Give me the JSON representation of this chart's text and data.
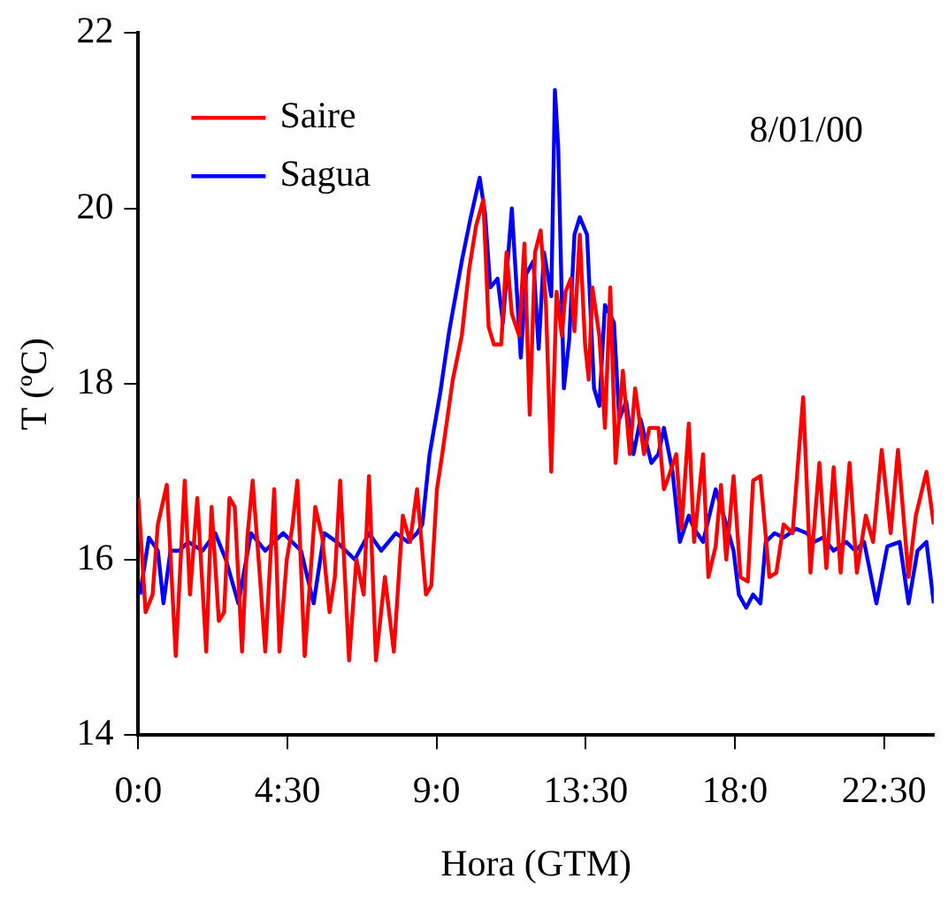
{
  "chart_data": {
    "type": "line",
    "xlabel": "Hora (GTM)",
    "ylabel": "T (ºC)",
    "annotations": [
      "8/01/00"
    ],
    "xlim": [
      0,
      24
    ],
    "xticks": [
      {
        "value": 0,
        "label": "0:0"
      },
      {
        "value": 4.5,
        "label": "4:30"
      },
      {
        "value": 9,
        "label": "9:0"
      },
      {
        "value": 13.5,
        "label": "13:30"
      },
      {
        "value": 18,
        "label": "18:0"
      },
      {
        "value": 22.5,
        "label": "22:30"
      }
    ],
    "ylim": [
      14,
      22
    ],
    "yticks": [
      14,
      16,
      18,
      20,
      22
    ],
    "grid": false,
    "legend": "top left",
    "marker": "none",
    "line_style": "solid",
    "series": [
      {
        "name": "Saire",
        "color": "#ff0000",
        "x": [
          0,
          0.22,
          0.43,
          0.59,
          0.86,
          1.13,
          1.4,
          1.56,
          1.78,
          2.05,
          2.21,
          2.43,
          2.59,
          2.75,
          2.91,
          3.13,
          3.29,
          3.45,
          3.67,
          3.83,
          4.1,
          4.26,
          4.48,
          4.64,
          4.8,
          5.02,
          5.34,
          5.55,
          5.77,
          5.93,
          6.09,
          6.36,
          6.58,
          6.8,
          6.96,
          7.17,
          7.44,
          7.71,
          7.98,
          8.2,
          8.41,
          8.68,
          8.84,
          9.01,
          9.17,
          9.49,
          9.76,
          9.98,
          10.19,
          10.41,
          10.57,
          10.73,
          10.95,
          11.11,
          11.27,
          11.49,
          11.65,
          11.81,
          11.97,
          12.14,
          12.3,
          12.46,
          12.62,
          12.78,
          12.89,
          13.05,
          13.16,
          13.32,
          13.48,
          13.59,
          13.7,
          13.91,
          14.08,
          14.24,
          14.4,
          14.62,
          14.83,
          14.99,
          15.26,
          15.42,
          15.69,
          15.86,
          15.96,
          16.23,
          16.39,
          16.61,
          16.77,
          17.04,
          17.2,
          17.42,
          17.58,
          17.74,
          17.96,
          18.17,
          18.39,
          18.55,
          18.77,
          19.04,
          19.25,
          19.47,
          19.74,
          20.06,
          20.28,
          20.55,
          20.76,
          20.98,
          21.19,
          21.46,
          21.68,
          21.95,
          22.17,
          22.43,
          22.7,
          22.92,
          23.24,
          23.46,
          23.78,
          24
        ],
        "values": [
          16.7,
          15.4,
          15.6,
          16.4,
          16.85,
          14.9,
          16.9,
          15.6,
          16.7,
          14.95,
          16.6,
          15.3,
          15.4,
          16.7,
          16.6,
          14.95,
          16.25,
          16.9,
          15.8,
          14.95,
          16.8,
          14.95,
          16,
          16.35,
          16.9,
          14.9,
          16.6,
          16.25,
          15.4,
          15.8,
          16.9,
          14.85,
          16,
          15.6,
          16.95,
          14.85,
          15.8,
          14.95,
          16.5,
          16.2,
          16.8,
          15.6,
          15.7,
          16.8,
          17.2,
          18.05,
          18.55,
          19.3,
          19.8,
          20.1,
          18.65,
          18.45,
          18.45,
          19.5,
          18.8,
          18.55,
          19.6,
          17.65,
          19.5,
          19.75,
          18.9,
          17,
          19.05,
          18.55,
          19.05,
          19.2,
          18.6,
          19.7,
          18.45,
          18.05,
          19.1,
          18.55,
          17.5,
          19.1,
          17.1,
          18.15,
          17.2,
          17.95,
          17.2,
          17.5,
          17.5,
          16.8,
          16.9,
          17.2,
          16.35,
          17.55,
          16.2,
          17.2,
          15.8,
          16.15,
          16.85,
          16,
          16.95,
          15.8,
          15.75,
          16.9,
          16.95,
          15.8,
          15.85,
          16.4,
          16.3,
          17.85,
          15.85,
          17.1,
          15.9,
          17.05,
          15.85,
          17.1,
          15.85,
          16.5,
          16.2,
          17.25,
          16.3,
          17.25,
          15.8,
          16.5,
          17,
          16.4
        ]
      },
      {
        "name": "Sagua",
        "color": "#0000ff",
        "x": [
          0.05,
          0.32,
          0.59,
          0.76,
          0.97,
          1.24,
          1.51,
          1.94,
          2.32,
          2.64,
          3.02,
          3.4,
          3.83,
          4.37,
          4.91,
          5.29,
          5.61,
          5.99,
          6.53,
          6.96,
          7.33,
          7.77,
          8.14,
          8.41,
          8.57,
          8.79,
          9.11,
          9.38,
          9.76,
          10.03,
          10.3,
          10.46,
          10.62,
          10.84,
          11,
          11.27,
          11.54,
          11.7,
          11.92,
          12.08,
          12.24,
          12.46,
          12.57,
          12.67,
          12.84,
          13,
          13.16,
          13.32,
          13.54,
          13.75,
          13.91,
          14.08,
          14.35,
          14.51,
          14.72,
          14.94,
          15.15,
          15.48,
          15.69,
          15.86,
          16.12,
          16.34,
          16.61,
          16.77,
          17.04,
          17.42,
          17.74,
          17.96,
          18.12,
          18.34,
          18.55,
          18.77,
          18.93,
          19.2,
          19.47,
          19.85,
          20.17,
          20.39,
          20.66,
          20.98,
          21.36,
          21.63,
          21.9,
          22.27,
          22.6,
          22.97,
          23.24,
          23.51,
          23.78,
          24
        ],
        "values": [
          15.6,
          16.25,
          16.1,
          15.5,
          16.1,
          16.1,
          16.2,
          16.1,
          16.3,
          16,
          15.5,
          16.3,
          16.1,
          16.3,
          16.1,
          15.5,
          16.3,
          16.2,
          16,
          16.3,
          16.1,
          16.3,
          16.2,
          16.3,
          16.4,
          17.2,
          17.9,
          18.6,
          19.4,
          19.9,
          20.35,
          19.95,
          19.1,
          19.2,
          18.7,
          20,
          18.3,
          19.25,
          19.4,
          18.4,
          19.5,
          19,
          21.35,
          20.7,
          17.95,
          18.5,
          19.7,
          19.9,
          19.7,
          17.95,
          17.75,
          18.9,
          18.7,
          17.6,
          17.8,
          17.2,
          17.6,
          17.1,
          17.2,
          17.5,
          17,
          16.2,
          16.5,
          16.35,
          16.2,
          16.8,
          16.4,
          16.1,
          15.6,
          15.45,
          15.6,
          15.5,
          16.2,
          16.3,
          16.25,
          16.35,
          16.3,
          16.2,
          16.25,
          16.1,
          16.2,
          16.1,
          16.2,
          15.5,
          16.15,
          16.2,
          15.5,
          16.1,
          16.2,
          15.5
        ]
      }
    ]
  }
}
